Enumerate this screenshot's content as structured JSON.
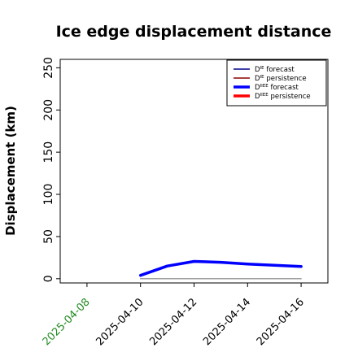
{
  "chart_data": {
    "type": "line",
    "title": "Ice edge displacement distance",
    "xlabel": "",
    "ylabel": "Displacement (km)",
    "xlim": [
      "2025-04-07",
      "2025-04-17"
    ],
    "ylim": [
      -5,
      260
    ],
    "x_ticks": [
      "2025-04-08",
      "2025-04-10",
      "2025-04-12",
      "2025-04-14",
      "2025-04-16"
    ],
    "x_tick_colors": [
      "#228b22",
      "#000000",
      "#000000",
      "#000000",
      "#000000"
    ],
    "y_ticks": [
      0,
      50,
      100,
      150,
      200,
      250
    ],
    "grid": false,
    "legend_position": "top-right",
    "series": [
      {
        "name_main": "D",
        "name_sup": "IE",
        "name_rest": " forecast",
        "color": "#0000cd",
        "style": "thin",
        "x": [
          "2025-04-10",
          "2025-04-11",
          "2025-04-12",
          "2025-04-13",
          "2025-04-14",
          "2025-04-15",
          "2025-04-16"
        ],
        "y": [
          null,
          null,
          null,
          null,
          null,
          null,
          null
        ]
      },
      {
        "name_main": "D",
        "name_sup": "IE",
        "name_rest": " persistence",
        "color": "#a0a0a0",
        "style": "thin",
        "x": [
          "2025-04-10",
          "2025-04-11",
          "2025-04-12",
          "2025-04-13",
          "2025-04-14",
          "2025-04-15",
          "2025-04-16"
        ],
        "y": [
          0,
          0,
          0,
          0,
          0,
          0,
          0
        ]
      },
      {
        "name_main": "D",
        "name_sup": "IIEE",
        "name_rest": " forecast",
        "color": "#0000ff",
        "style": "thick",
        "x": [
          "2025-04-10",
          "2025-04-11",
          "2025-04-12",
          "2025-04-13",
          "2025-04-14",
          "2025-04-15",
          "2025-04-16"
        ],
        "y": [
          4,
          15,
          20.5,
          19.5,
          17.5,
          16,
          14.5
        ]
      },
      {
        "name_main": "D",
        "name_sup": "IIEE",
        "name_rest": " persistence",
        "color": "#ff0000",
        "style": "thick",
        "x": [
          "2025-04-10",
          "2025-04-11",
          "2025-04-12",
          "2025-04-13",
          "2025-04-14",
          "2025-04-15",
          "2025-04-16"
        ],
        "y": [
          null,
          null,
          null,
          null,
          null,
          null,
          null
        ]
      }
    ],
    "legend_colors": [
      "#00008b",
      "#8b0000",
      "#0000ff",
      "#ff0000"
    ]
  }
}
